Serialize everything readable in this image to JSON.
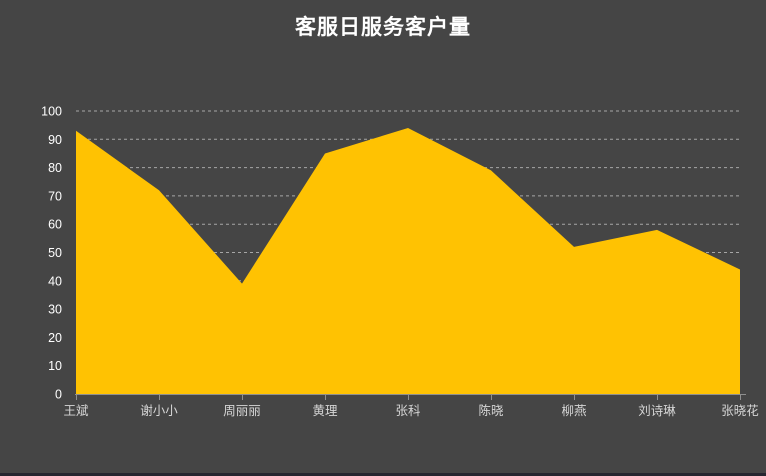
{
  "chart_data": {
    "type": "area",
    "title": "客服日服务客户量",
    "categories": [
      "王斌",
      "谢小小",
      "周丽丽",
      "黄理",
      "张科",
      "陈晓",
      "柳燕",
      "刘诗琳",
      "张晓花"
    ],
    "values": [
      93,
      72,
      39,
      85,
      94,
      79,
      52,
      58,
      44
    ],
    "xlabel": "",
    "ylabel": "",
    "ylim": [
      0,
      100
    ],
    "y_tick_interval": 10,
    "y_tick_labels": [
      "0",
      "10",
      "20",
      "30",
      "40",
      "50",
      "60",
      "70",
      "80",
      "90",
      "100"
    ],
    "grid": "horizontal-dashed",
    "legend_position": "none",
    "colors": {
      "background": "#454545",
      "area_fill": "#ffc202",
      "title_text": "#ffffff",
      "y_axis_label": "#ffffff",
      "x_axis_label": "#d6d6d6",
      "axis_line": "#8f8f8f",
      "gridline": "#a6a6a6",
      "bottom_edge": "#262630"
    }
  }
}
